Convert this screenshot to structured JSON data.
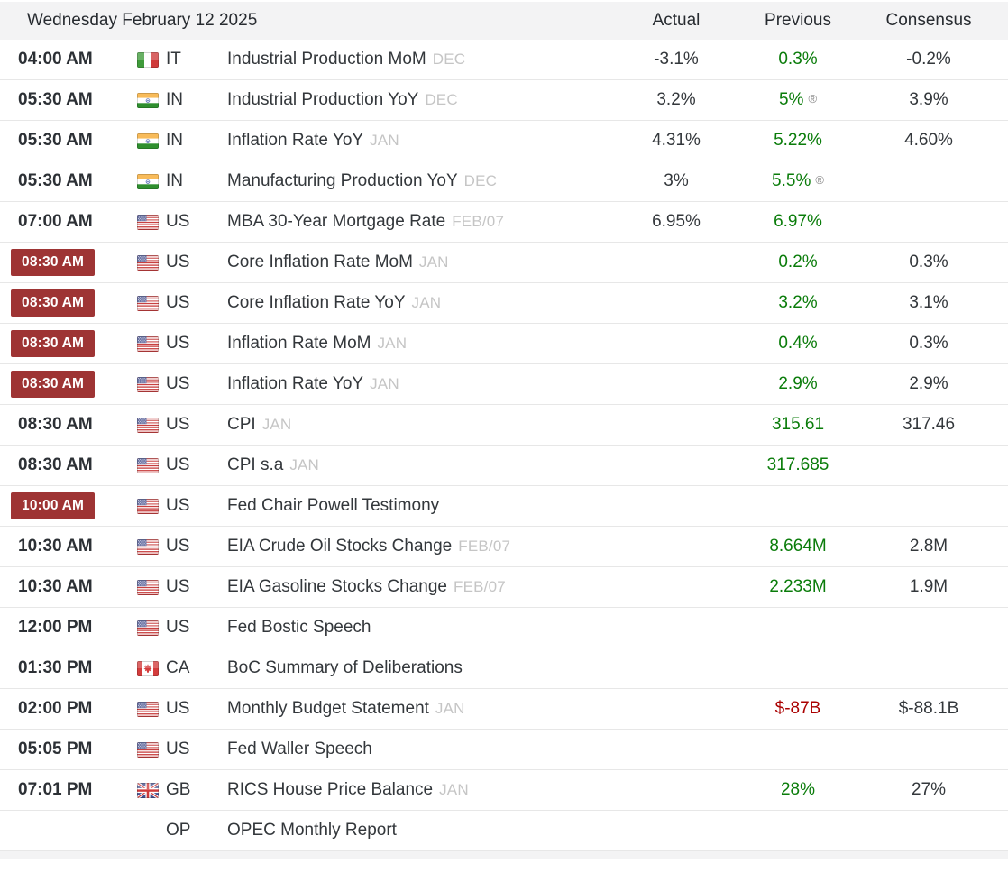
{
  "theme": {
    "positive_color": "#0a7c0a",
    "negative_color": "#aa0000",
    "badge_color": "#9e3434",
    "header_bg": "#f3f3f4",
    "row_border": "#e7e7e7"
  },
  "header": {
    "date_label": "Wednesday February 12 2025",
    "columns": [
      "Actual",
      "Previous",
      "Consensus"
    ]
  },
  "revised_symbol": "®",
  "rows": [
    {
      "time": "04:00 AM",
      "time_highlight": false,
      "flag": "IT",
      "country_code": "IT",
      "event": "Industrial Production MoM",
      "period": "DEC",
      "actual": "-3.1%",
      "previous": "0.3%",
      "previous_tone": "positive",
      "previous_revised": false,
      "consensus": "-0.2%"
    },
    {
      "time": "05:30 AM",
      "time_highlight": false,
      "flag": "IN",
      "country_code": "IN",
      "event": "Industrial Production YoY",
      "period": "DEC",
      "actual": "3.2%",
      "previous": "5%",
      "previous_tone": "positive",
      "previous_revised": true,
      "consensus": "3.9%"
    },
    {
      "time": "05:30 AM",
      "time_highlight": false,
      "flag": "IN",
      "country_code": "IN",
      "event": "Inflation Rate YoY",
      "period": "JAN",
      "actual": "4.31%",
      "previous": "5.22%",
      "previous_tone": "positive",
      "previous_revised": false,
      "consensus": "4.60%"
    },
    {
      "time": "05:30 AM",
      "time_highlight": false,
      "flag": "IN",
      "country_code": "IN",
      "event": "Manufacturing Production YoY",
      "period": "DEC",
      "actual": "3%",
      "previous": "5.5%",
      "previous_tone": "positive",
      "previous_revised": true,
      "consensus": ""
    },
    {
      "time": "07:00 AM",
      "time_highlight": false,
      "flag": "US",
      "country_code": "US",
      "event": "MBA 30-Year Mortgage Rate",
      "period": "FEB/07",
      "actual": "6.95%",
      "previous": "6.97%",
      "previous_tone": "positive",
      "previous_revised": false,
      "consensus": ""
    },
    {
      "time": "08:30 AM",
      "time_highlight": true,
      "flag": "US",
      "country_code": "US",
      "event": "Core Inflation Rate MoM",
      "period": "JAN",
      "actual": "",
      "previous": "0.2%",
      "previous_tone": "positive",
      "previous_revised": false,
      "consensus": "0.3%"
    },
    {
      "time": "08:30 AM",
      "time_highlight": true,
      "flag": "US",
      "country_code": "US",
      "event": "Core Inflation Rate YoY",
      "period": "JAN",
      "actual": "",
      "previous": "3.2%",
      "previous_tone": "positive",
      "previous_revised": false,
      "consensus": "3.1%"
    },
    {
      "time": "08:30 AM",
      "time_highlight": true,
      "flag": "US",
      "country_code": "US",
      "event": "Inflation Rate MoM",
      "period": "JAN",
      "actual": "",
      "previous": "0.4%",
      "previous_tone": "positive",
      "previous_revised": false,
      "consensus": "0.3%"
    },
    {
      "time": "08:30 AM",
      "time_highlight": true,
      "flag": "US",
      "country_code": "US",
      "event": "Inflation Rate YoY",
      "period": "JAN",
      "actual": "",
      "previous": "2.9%",
      "previous_tone": "positive",
      "previous_revised": false,
      "consensus": "2.9%"
    },
    {
      "time": "08:30 AM",
      "time_highlight": false,
      "flag": "US",
      "country_code": "US",
      "event": "CPI",
      "period": "JAN",
      "actual": "",
      "previous": "315.61",
      "previous_tone": "positive",
      "previous_revised": false,
      "consensus": "317.46"
    },
    {
      "time": "08:30 AM",
      "time_highlight": false,
      "flag": "US",
      "country_code": "US",
      "event": "CPI s.a",
      "period": "JAN",
      "actual": "",
      "previous": "317.685",
      "previous_tone": "positive",
      "previous_revised": false,
      "consensus": ""
    },
    {
      "time": "10:00 AM",
      "time_highlight": true,
      "flag": "US",
      "country_code": "US",
      "event": "Fed Chair Powell Testimony",
      "period": "",
      "actual": "",
      "previous": "",
      "previous_tone": "",
      "previous_revised": false,
      "consensus": ""
    },
    {
      "time": "10:30 AM",
      "time_highlight": false,
      "flag": "US",
      "country_code": "US",
      "event": "EIA Crude Oil Stocks Change",
      "period": "FEB/07",
      "actual": "",
      "previous": "8.664M",
      "previous_tone": "positive",
      "previous_revised": false,
      "consensus": "2.8M"
    },
    {
      "time": "10:30 AM",
      "time_highlight": false,
      "flag": "US",
      "country_code": "US",
      "event": "EIA Gasoline Stocks Change",
      "period": "FEB/07",
      "actual": "",
      "previous": "2.233M",
      "previous_tone": "positive",
      "previous_revised": false,
      "consensus": "1.9M"
    },
    {
      "time": "12:00 PM",
      "time_highlight": false,
      "flag": "US",
      "country_code": "US",
      "event": "Fed Bostic Speech",
      "period": "",
      "actual": "",
      "previous": "",
      "previous_tone": "",
      "previous_revised": false,
      "consensus": ""
    },
    {
      "time": "01:30 PM",
      "time_highlight": false,
      "flag": "CA",
      "country_code": "CA",
      "event": "BoC Summary of Deliberations",
      "period": "",
      "actual": "",
      "previous": "",
      "previous_tone": "",
      "previous_revised": false,
      "consensus": ""
    },
    {
      "time": "02:00 PM",
      "time_highlight": false,
      "flag": "US",
      "country_code": "US",
      "event": "Monthly Budget Statement",
      "period": "JAN",
      "actual": "",
      "previous": "$-87B",
      "previous_tone": "negative",
      "previous_revised": false,
      "consensus": "$-88.1B"
    },
    {
      "time": "05:05 PM",
      "time_highlight": false,
      "flag": "US",
      "country_code": "US",
      "event": "Fed Waller Speech",
      "period": "",
      "actual": "",
      "previous": "",
      "previous_tone": "",
      "previous_revised": false,
      "consensus": ""
    },
    {
      "time": "07:01 PM",
      "time_highlight": false,
      "flag": "GB",
      "country_code": "GB",
      "event": "RICS House Price Balance",
      "period": "JAN",
      "actual": "",
      "previous": "28%",
      "previous_tone": "positive",
      "previous_revised": false,
      "consensus": "27%"
    },
    {
      "time": "",
      "time_highlight": false,
      "flag": "",
      "country_code": "OP",
      "event": "OPEC Monthly Report",
      "period": "",
      "actual": "",
      "previous": "",
      "previous_tone": "",
      "previous_revised": false,
      "consensus": ""
    }
  ]
}
